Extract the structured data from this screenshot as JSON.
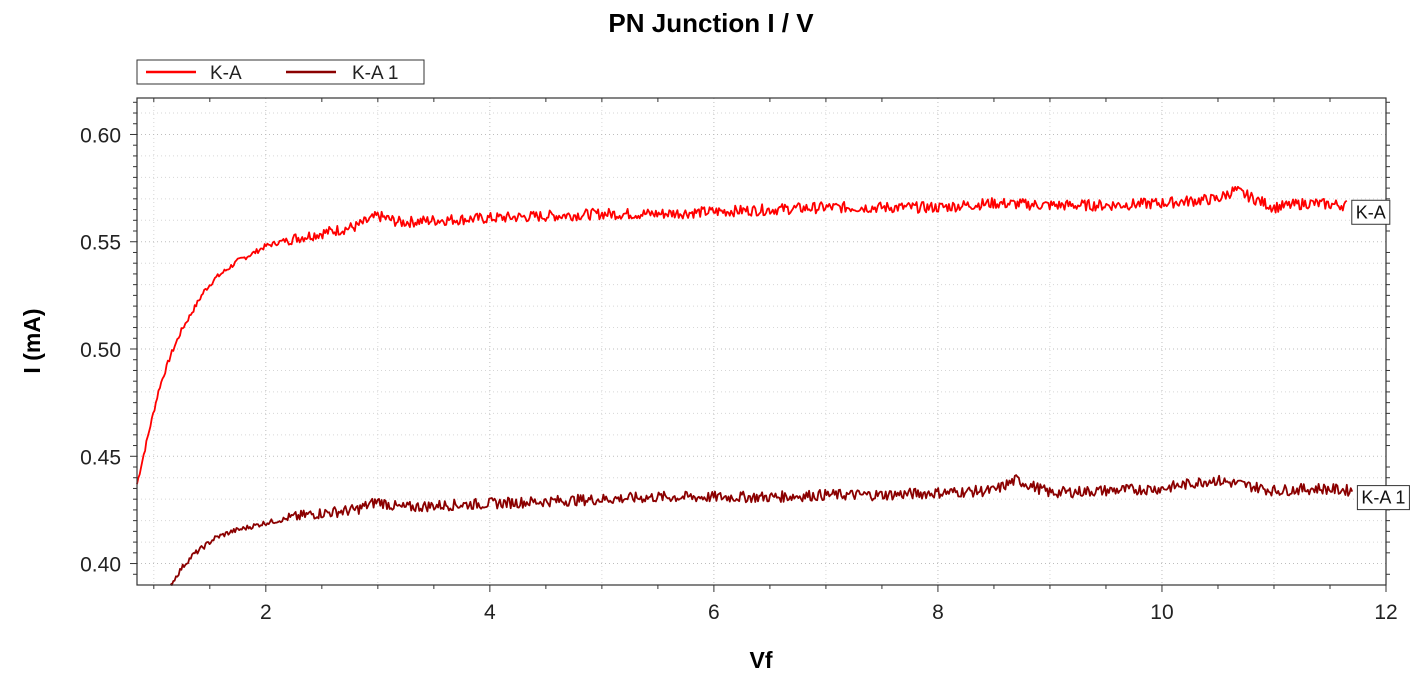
{
  "chart_data": {
    "type": "line",
    "title": "PN Junction I / V",
    "xlabel": "Vf",
    "ylabel": "I (mA)",
    "xlim": [
      0.85,
      12.0
    ],
    "ylim": [
      0.39,
      0.617
    ],
    "xticks": [
      2,
      4,
      6,
      8,
      10,
      12
    ],
    "yticks": [
      0.4,
      0.45,
      0.5,
      0.55,
      0.6
    ],
    "ytick_labels": [
      "0.40",
      "0.45",
      "0.50",
      "0.55",
      "0.60"
    ],
    "grid": true,
    "legend": "top-left, above plot",
    "series": [
      {
        "name": "K-A",
        "color": "#ff0000",
        "x": [
          0.85,
          0.95,
          1.05,
          1.15,
          1.25,
          1.35,
          1.45,
          1.55,
          1.65,
          1.75,
          1.9,
          2.0,
          2.2,
          2.4,
          2.6,
          2.8,
          3.0,
          3.2,
          3.5,
          4.0,
          4.5,
          5.0,
          5.5,
          6.0,
          6.5,
          7.0,
          7.5,
          8.0,
          8.5,
          9.0,
          9.5,
          10.0,
          10.5,
          10.65,
          11.0,
          11.3,
          11.65
        ],
        "y": [
          0.437,
          0.46,
          0.482,
          0.497,
          0.509,
          0.518,
          0.527,
          0.533,
          0.537,
          0.541,
          0.545,
          0.548,
          0.551,
          0.553,
          0.555,
          0.557,
          0.562,
          0.559,
          0.56,
          0.561,
          0.562,
          0.563,
          0.563,
          0.564,
          0.565,
          0.566,
          0.566,
          0.566,
          0.568,
          0.567,
          0.567,
          0.568,
          0.57,
          0.574,
          0.566,
          0.568,
          0.567
        ],
        "end_label": "K-A"
      },
      {
        "name": "K-A 1",
        "color": "#8b0000",
        "x": [
          1.15,
          1.25,
          1.35,
          1.45,
          1.55,
          1.7,
          1.85,
          2.0,
          2.2,
          2.4,
          2.6,
          2.8,
          3.0,
          3.2,
          3.5,
          4.0,
          4.5,
          5.0,
          5.5,
          6.0,
          6.5,
          7.0,
          7.5,
          8.0,
          8.5,
          8.7,
          9.0,
          9.5,
          10.0,
          10.45,
          10.7,
          11.0,
          11.4,
          11.7
        ],
        "y": [
          0.39,
          0.398,
          0.404,
          0.408,
          0.412,
          0.415,
          0.417,
          0.419,
          0.421,
          0.423,
          0.424,
          0.425,
          0.429,
          0.426,
          0.427,
          0.428,
          0.429,
          0.43,
          0.431,
          0.431,
          0.431,
          0.432,
          0.432,
          0.433,
          0.434,
          0.439,
          0.433,
          0.434,
          0.435,
          0.439,
          0.437,
          0.434,
          0.435,
          0.434
        ],
        "end_label": "K-A 1"
      }
    ]
  }
}
